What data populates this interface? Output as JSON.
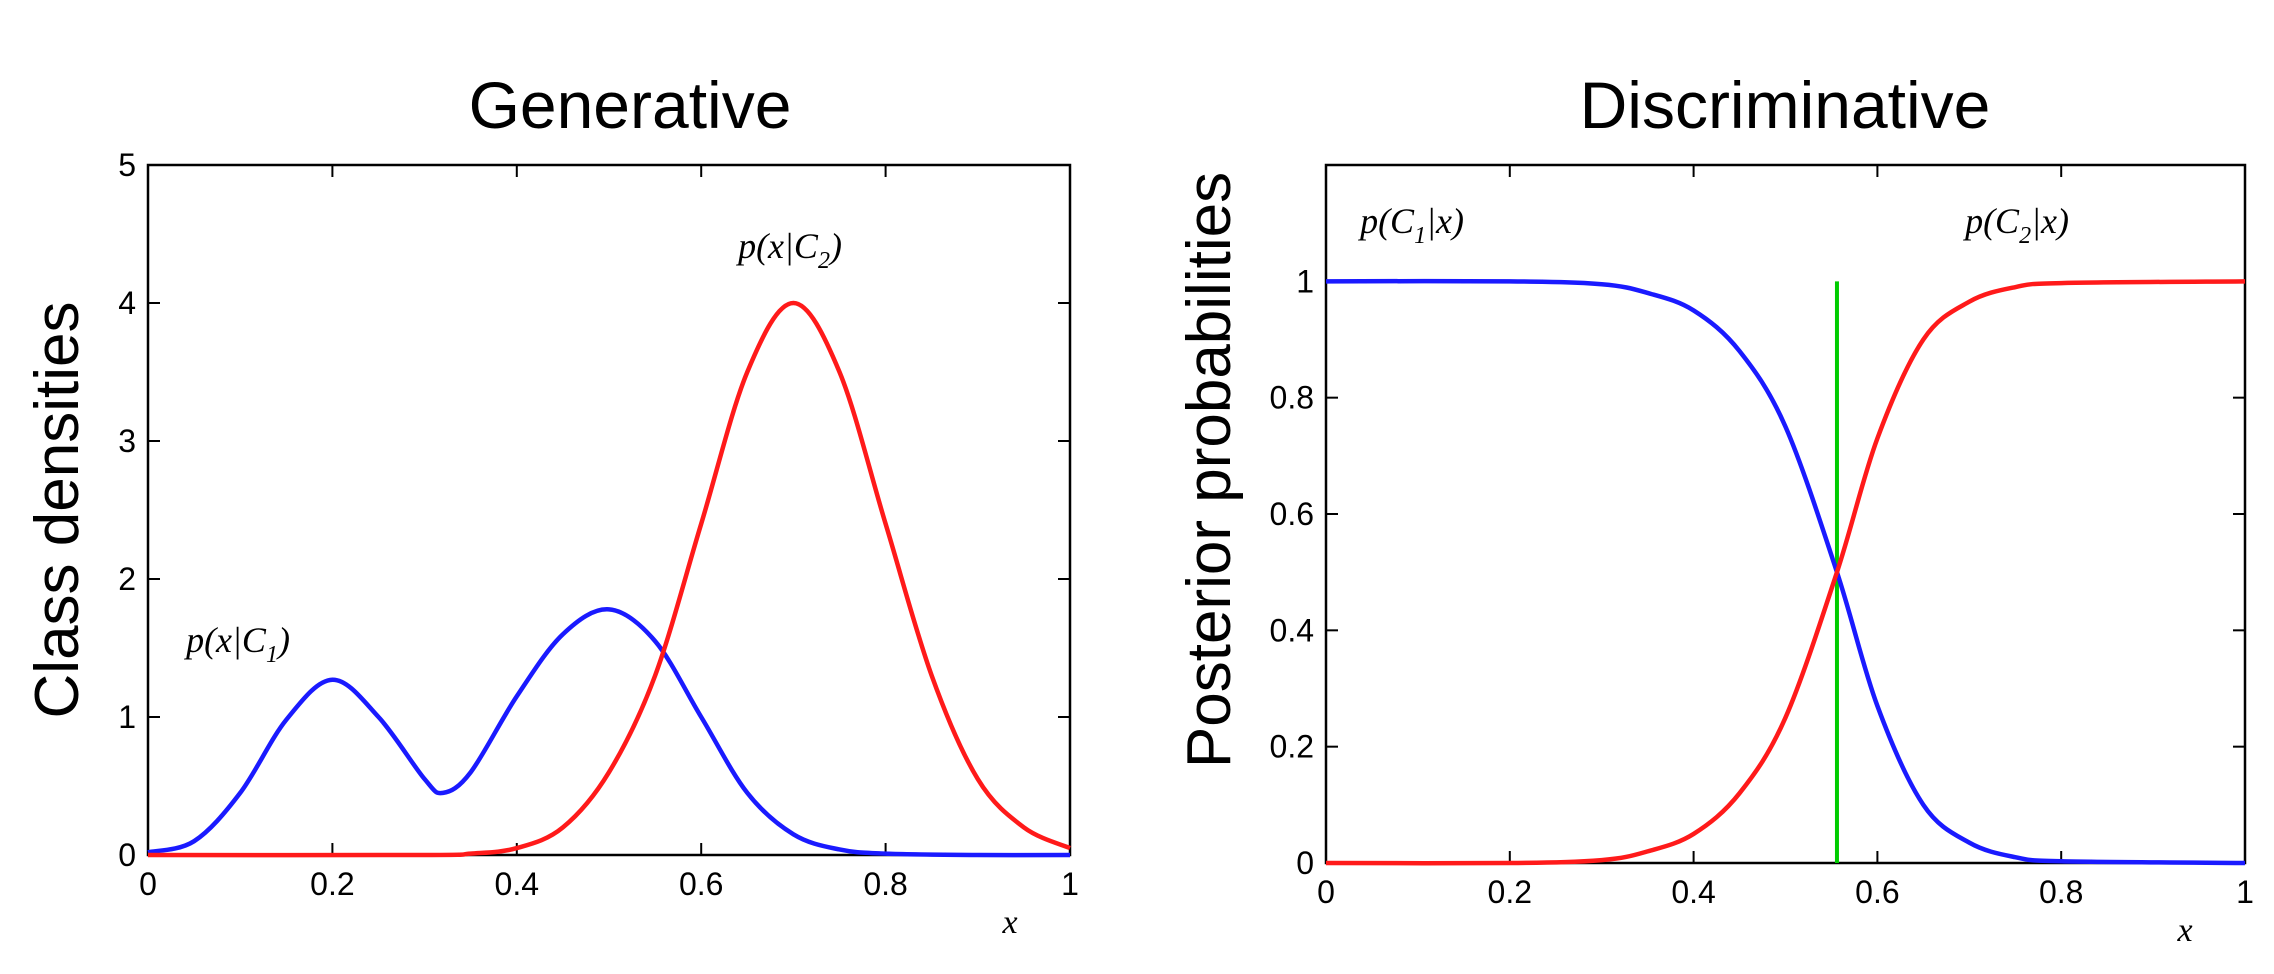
{
  "chart_data": [
    {
      "type": "line",
      "title": "Generative",
      "xlabel": "x",
      "ylabel": "Class densities",
      "xlim": [
        0,
        1
      ],
      "ylim": [
        0,
        5
      ],
      "xticks": [
        "0",
        "0.2",
        "0.4",
        "0.6",
        "0.8",
        "1"
      ],
      "yticks": [
        "0",
        "1",
        "2",
        "3",
        "4",
        "5"
      ],
      "grid": false,
      "series": [
        {
          "name": "p(x|C1)",
          "color": "#1a1aff",
          "x": [
            0,
            0.05,
            0.1,
            0.15,
            0.2,
            0.25,
            0.3,
            0.32,
            0.35,
            0.4,
            0.45,
            0.5,
            0.55,
            0.6,
            0.65,
            0.7,
            0.75,
            0.8,
            0.9,
            1.0
          ],
          "y": [
            0.02,
            0.1,
            0.45,
            0.98,
            1.27,
            1.0,
            0.55,
            0.45,
            0.6,
            1.15,
            1.6,
            1.78,
            1.55,
            1.0,
            0.45,
            0.15,
            0.04,
            0.01,
            0,
            0
          ]
        },
        {
          "name": "p(x|C2)",
          "color": "#ff1a1a",
          "x": [
            0,
            0.3,
            0.35,
            0.4,
            0.45,
            0.5,
            0.55,
            0.6,
            0.65,
            0.7,
            0.75,
            0.8,
            0.85,
            0.9,
            0.95,
            1.0
          ],
          "y": [
            0,
            0,
            0.01,
            0.05,
            0.2,
            0.6,
            1.3,
            2.4,
            3.5,
            4.0,
            3.5,
            2.4,
            1.3,
            0.55,
            0.2,
            0.05
          ]
        }
      ],
      "annotations": [
        {
          "text_pre": "p(x|C",
          "sub": "1",
          "text_post": ")",
          "series": "p(x|C1)"
        },
        {
          "text_pre": "p(x|C",
          "sub": "2",
          "text_post": ")",
          "series": "p(x|C2)"
        }
      ]
    },
    {
      "type": "line",
      "title": "Discriminative",
      "xlabel": "x",
      "ylabel": "Posterior probabilities",
      "xlim": [
        0,
        1
      ],
      "ylim": [
        0,
        1.2
      ],
      "xticks": [
        "0",
        "0.2",
        "0.4",
        "0.6",
        "0.8",
        "1"
      ],
      "yticks": [
        "0",
        "0.2",
        "0.4",
        "0.6",
        "0.8",
        "1"
      ],
      "grid": false,
      "series": [
        {
          "name": "p(C1|x)",
          "color": "#1a1aff",
          "x": [
            0,
            0.2,
            0.3,
            0.35,
            0.4,
            0.45,
            0.5,
            0.556,
            0.6,
            0.65,
            0.7,
            0.75,
            0.8,
            1.0
          ],
          "y": [
            1.0,
            1.0,
            0.995,
            0.98,
            0.95,
            0.88,
            0.75,
            0.5,
            0.27,
            0.1,
            0.035,
            0.01,
            0.003,
            0.0
          ]
        },
        {
          "name": "p(C2|x)",
          "color": "#ff1a1a",
          "x": [
            0,
            0.2,
            0.3,
            0.35,
            0.4,
            0.45,
            0.5,
            0.556,
            0.6,
            0.65,
            0.7,
            0.75,
            0.8,
            1.0
          ],
          "y": [
            0.0,
            0.0,
            0.005,
            0.02,
            0.05,
            0.12,
            0.25,
            0.5,
            0.73,
            0.9,
            0.965,
            0.99,
            0.997,
            1.0
          ]
        }
      ],
      "vline": {
        "x": 0.556,
        "y0": 0,
        "y1": 1.0,
        "color": "#00cc00"
      },
      "annotations": [
        {
          "text_pre": "p(C",
          "sub": "1",
          "text_post": "|x)",
          "series": "p(C1|x)"
        },
        {
          "text_pre": "p(C",
          "sub": "2",
          "text_post": "|x)",
          "series": "p(C2|x)"
        }
      ]
    }
  ]
}
